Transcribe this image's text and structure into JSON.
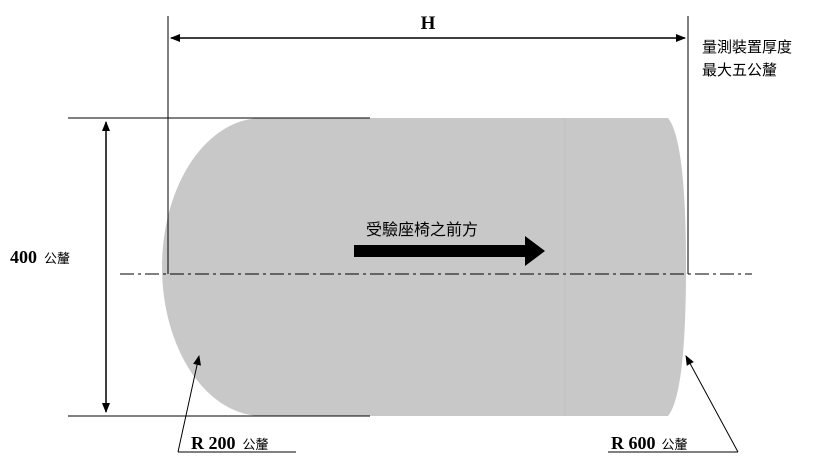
{
  "dimension_h": {
    "label": "H"
  },
  "thickness_note": {
    "line1": "量測裝置厚度",
    "line2": "最大五公釐"
  },
  "height_dimension": {
    "value": "400",
    "unit": "公釐"
  },
  "direction": {
    "label": "受驗座椅之前方"
  },
  "radius_front": {
    "value": "R 200",
    "unit": "公釐"
  },
  "radius_rear": {
    "value": "R 600",
    "unit": "公釐"
  },
  "colors": {
    "body": "#c8c8c8",
    "line": "#000000"
  }
}
